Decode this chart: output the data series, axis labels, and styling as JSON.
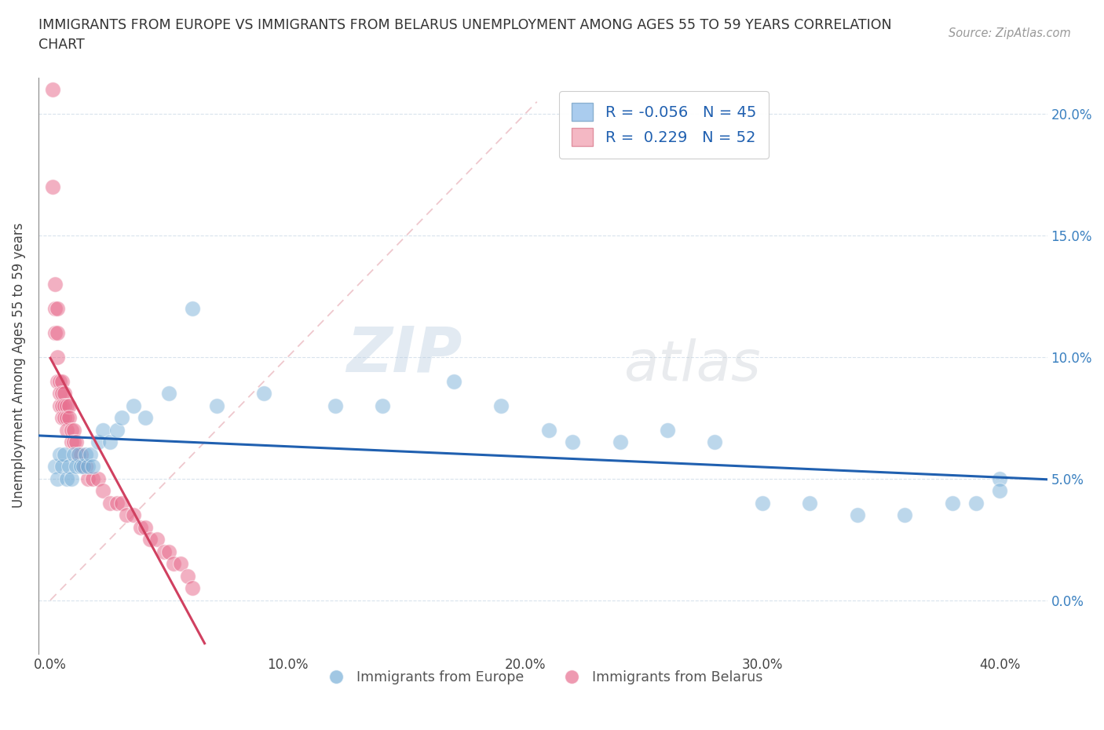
{
  "title": "IMMIGRANTS FROM EUROPE VS IMMIGRANTS FROM BELARUS UNEMPLOYMENT AMONG AGES 55 TO 59 YEARS CORRELATION\nCHART",
  "source_text": "Source: ZipAtlas.com",
  "ylabel": "Unemployment Among Ages 55 to 59 years",
  "xlabel_ticks": [
    "0.0%",
    "10.0%",
    "20.0%",
    "30.0%",
    "40.0%"
  ],
  "xlabel_vals": [
    0.0,
    0.1,
    0.2,
    0.3,
    0.4
  ],
  "ylabel_ticks": [
    "0.0%",
    "5.0%",
    "10.0%",
    "15.0%",
    "20.0%"
  ],
  "ylabel_vals": [
    0.0,
    0.05,
    0.1,
    0.15,
    0.2
  ],
  "xlim": [
    -0.005,
    0.42
  ],
  "ylim": [
    -0.022,
    0.215
  ],
  "legend_r": [
    -0.056,
    0.229
  ],
  "legend_n": [
    45,
    52
  ],
  "blue_color": "#aaccee",
  "pink_color": "#f4b8c4",
  "blue_line_color": "#2060b0",
  "pink_line_color": "#d04060",
  "blue_scatter_color": "#7ab0d8",
  "pink_scatter_color": "#e87090",
  "diag_color": "#e8b0b8",
  "watermark": "ZIPatlas",
  "europe_x": [
    0.002,
    0.003,
    0.004,
    0.005,
    0.006,
    0.007,
    0.008,
    0.009,
    0.01,
    0.011,
    0.012,
    0.013,
    0.014,
    0.015,
    0.016,
    0.017,
    0.018,
    0.02,
    0.022,
    0.025,
    0.028,
    0.03,
    0.035,
    0.04,
    0.05,
    0.06,
    0.07,
    0.09,
    0.12,
    0.14,
    0.17,
    0.19,
    0.21,
    0.22,
    0.24,
    0.26,
    0.28,
    0.3,
    0.32,
    0.34,
    0.36,
    0.38,
    0.39,
    0.4,
    0.4
  ],
  "europe_y": [
    0.055,
    0.05,
    0.06,
    0.055,
    0.06,
    0.05,
    0.055,
    0.05,
    0.06,
    0.055,
    0.06,
    0.055,
    0.055,
    0.06,
    0.055,
    0.06,
    0.055,
    0.065,
    0.07,
    0.065,
    0.07,
    0.075,
    0.08,
    0.075,
    0.085,
    0.12,
    0.08,
    0.085,
    0.08,
    0.08,
    0.09,
    0.08,
    0.07,
    0.065,
    0.065,
    0.07,
    0.065,
    0.04,
    0.04,
    0.035,
    0.035,
    0.04,
    0.04,
    0.05,
    0.045
  ],
  "belarus_x": [
    0.001,
    0.001,
    0.002,
    0.002,
    0.002,
    0.003,
    0.003,
    0.003,
    0.003,
    0.004,
    0.004,
    0.004,
    0.005,
    0.005,
    0.005,
    0.005,
    0.006,
    0.006,
    0.006,
    0.007,
    0.007,
    0.007,
    0.008,
    0.008,
    0.009,
    0.009,
    0.01,
    0.01,
    0.011,
    0.012,
    0.013,
    0.014,
    0.015,
    0.016,
    0.018,
    0.02,
    0.022,
    0.025,
    0.028,
    0.03,
    0.032,
    0.035,
    0.038,
    0.04,
    0.042,
    0.045,
    0.048,
    0.05,
    0.052,
    0.055,
    0.058,
    0.06
  ],
  "belarus_y": [
    0.21,
    0.17,
    0.13,
    0.12,
    0.11,
    0.12,
    0.11,
    0.1,
    0.09,
    0.09,
    0.08,
    0.085,
    0.09,
    0.085,
    0.08,
    0.075,
    0.085,
    0.08,
    0.075,
    0.08,
    0.075,
    0.07,
    0.08,
    0.075,
    0.07,
    0.065,
    0.07,
    0.065,
    0.065,
    0.06,
    0.06,
    0.055,
    0.055,
    0.05,
    0.05,
    0.05,
    0.045,
    0.04,
    0.04,
    0.04,
    0.035,
    0.035,
    0.03,
    0.03,
    0.025,
    0.025,
    0.02,
    0.02,
    0.015,
    0.015,
    0.01,
    0.005
  ]
}
